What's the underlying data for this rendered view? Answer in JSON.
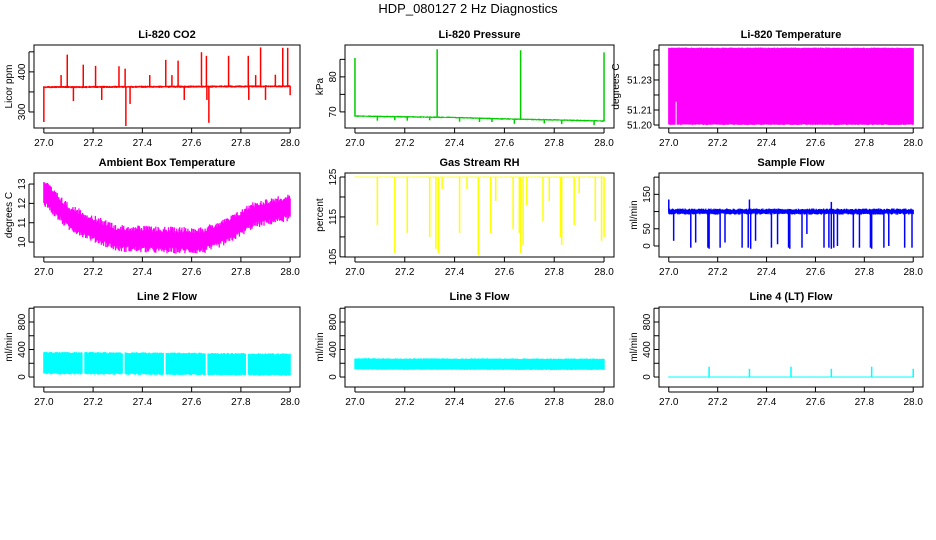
{
  "title": "HDP_080127  2 Hz Diagnostics",
  "chart_data": [
    {
      "type": "line",
      "title": "Li-820 CO2",
      "ylabel": "Licor ppm",
      "color": "#ff0000",
      "xlim": [
        26.96,
        28.04
      ],
      "xticks": [
        27.0,
        27.2,
        27.4,
        27.6,
        27.8,
        28.0
      ],
      "xticklabels": [
        "27.0",
        "27.2",
        "27.4",
        "27.6",
        "27.8",
        "28.0"
      ],
      "ylim": [
        260,
        467
      ],
      "yticks": [
        300,
        350,
        400,
        450
      ],
      "yticklabels": [
        "300",
        "",
        "400",
        ""
      ],
      "baseline": [
        [
          27.0,
          362
        ],
        [
          28.0,
          364
        ]
      ],
      "band_half": 3,
      "jitter": 0.6,
      "spikes": [
        [
          27.0,
          275
        ],
        [
          27.07,
          392
        ],
        [
          27.095,
          443
        ],
        [
          27.12,
          327
        ],
        [
          27.16,
          418
        ],
        [
          27.21,
          415
        ],
        [
          27.235,
          330
        ],
        [
          27.305,
          414
        ],
        [
          27.33,
          408
        ],
        [
          27.333,
          265
        ],
        [
          27.35,
          320
        ],
        [
          27.43,
          392
        ],
        [
          27.495,
          430
        ],
        [
          27.52,
          392
        ],
        [
          27.545,
          428
        ],
        [
          27.57,
          330
        ],
        [
          27.64,
          449
        ],
        [
          27.66,
          440
        ],
        [
          27.662,
          330
        ],
        [
          27.67,
          273
        ],
        [
          27.75,
          440
        ],
        [
          27.83,
          440
        ],
        [
          27.832,
          330
        ],
        [
          27.86,
          392
        ],
        [
          27.88,
          461
        ],
        [
          27.9,
          330
        ],
        [
          27.94,
          393
        ],
        [
          27.97,
          460
        ],
        [
          27.99,
          460
        ],
        [
          28.0,
          342
        ]
      ]
    },
    {
      "type": "line",
      "title": "Li-820 Pressure",
      "ylabel": "kPa",
      "color": "#00cc00",
      "xlim": [
        26.96,
        28.04
      ],
      "xticks": [
        27.0,
        27.2,
        27.4,
        27.6,
        27.8,
        28.0
      ],
      "xticklabels": [
        "27.0",
        "27.2",
        "27.4",
        "27.6",
        "27.8",
        "28.0"
      ],
      "ylim": [
        65.4,
        89.1
      ],
      "yticks": [
        70,
        75,
        80,
        85
      ],
      "yticklabels": [
        "70",
        "",
        "80",
        ""
      ],
      "baseline": [
        [
          27.0,
          68.8
        ],
        [
          27.4,
          68.4
        ],
        [
          27.6,
          68.0
        ],
        [
          28.0,
          67.4
        ]
      ],
      "band_half": 0.25,
      "jitter": 0.6,
      "spikes": [
        [
          27.0,
          85.4
        ],
        [
          27.33,
          87.9
        ],
        [
          27.665,
          87.6
        ],
        [
          28.0,
          87.0
        ],
        [
          27.09,
          67.5
        ],
        [
          27.16,
          67.6
        ],
        [
          27.21,
          67.5
        ],
        [
          27.3,
          67.6
        ],
        [
          27.42,
          67.2
        ],
        [
          27.5,
          67.1
        ],
        [
          27.55,
          67.1
        ],
        [
          27.64,
          66.6
        ],
        [
          27.76,
          66.7
        ],
        [
          27.83,
          66.5
        ],
        [
          27.96,
          66.2
        ]
      ]
    },
    {
      "type": "area",
      "title": "Li-820 Temperature",
      "ylabel": "degrees C",
      "color": "#ff00ff",
      "xlim": [
        26.96,
        28.04
      ],
      "xticks": [
        27.0,
        27.2,
        27.4,
        27.6,
        27.8,
        28.0
      ],
      "xticklabels": [
        "27.0",
        "27.2",
        "27.4",
        "27.6",
        "27.8",
        "28.0"
      ],
      "ylim": [
        51.198,
        51.2533
      ],
      "yticks": [
        51.2,
        51.21,
        51.22,
        51.23,
        51.24,
        51.25
      ],
      "yticklabels": [
        "51.20",
        "51.21",
        "",
        "51.23",
        "",
        ""
      ],
      "baseline": [
        [
          27.0,
          51.2258
        ],
        [
          28.0,
          51.2258
        ]
      ],
      "band_half": 0.0258,
      "jitter": 0.02,
      "notch": [
        27.03,
        51.2,
        51.2155
      ],
      "spikes": []
    },
    {
      "type": "line",
      "title": "Ambient Box Temperature",
      "ylabel": "degrees C",
      "color": "#ff00ff",
      "xlim": [
        26.96,
        28.04
      ],
      "xticks": [
        27.0,
        27.2,
        27.4,
        27.6,
        27.8,
        28.0
      ],
      "xticklabels": [
        "27.0",
        "27.2",
        "27.4",
        "27.6",
        "27.8",
        "28.0"
      ],
      "ylim": [
        9.23,
        13.57
      ],
      "yticks": [
        10,
        11,
        12,
        13
      ],
      "yticklabels": [
        "10",
        "11",
        "12",
        "13"
      ],
      "baseline": [
        [
          27.0,
          12.6
        ],
        [
          27.05,
          11.9
        ],
        [
          27.1,
          11.3
        ],
        [
          27.2,
          10.7
        ],
        [
          27.3,
          10.2
        ],
        [
          27.5,
          10.1
        ],
        [
          27.65,
          10.1
        ],
        [
          27.75,
          10.6
        ],
        [
          27.85,
          11.4
        ],
        [
          28.0,
          11.8
        ]
      ],
      "band_half": 0.7,
      "jitter": 0.45,
      "spikes": []
    },
    {
      "type": "line",
      "title": "Gas Stream RH",
      "ylabel": "percent",
      "color": "#ffff00",
      "xlim": [
        26.96,
        28.04
      ],
      "xticks": [
        27.0,
        27.2,
        27.4,
        27.6,
        27.8,
        28.0
      ],
      "xticklabels": [
        "27.0",
        "27.2",
        "27.4",
        "27.6",
        "27.8",
        "28.0"
      ],
      "ylim": [
        104.97,
        126
      ],
      "yticks": [
        105,
        110,
        115,
        120,
        125
      ],
      "yticklabels": [
        "105",
        "",
        "115",
        "",
        "125"
      ],
      "baseline": [
        [
          27.0,
          125
        ],
        [
          28.0,
          125
        ]
      ],
      "band_half": 0.1,
      "jitter": 0.5,
      "spikes": [
        [
          27.09,
          113
        ],
        [
          27.16,
          106
        ],
        [
          27.21,
          111
        ],
        [
          27.3,
          110
        ],
        [
          27.325,
          107
        ],
        [
          27.335,
          106
        ],
        [
          27.35,
          122
        ],
        [
          27.42,
          111
        ],
        [
          27.45,
          122
        ],
        [
          27.495,
          105.5
        ],
        [
          27.545,
          111
        ],
        [
          27.565,
          119
        ],
        [
          27.635,
          112
        ],
        [
          27.66,
          111
        ],
        [
          27.665,
          106
        ],
        [
          27.675,
          108
        ],
        [
          27.69,
          118
        ],
        [
          27.755,
          114
        ],
        [
          27.78,
          119
        ],
        [
          27.825,
          110
        ],
        [
          27.83,
          108
        ],
        [
          27.88,
          113
        ],
        [
          27.9,
          121
        ],
        [
          27.965,
          114
        ],
        [
          27.99,
          109
        ],
        [
          28.0,
          110
        ]
      ]
    },
    {
      "type": "line",
      "title": "Sample Flow",
      "ylabel": "ml/min",
      "color": "#0000ff",
      "xlim": [
        26.96,
        28.04
      ],
      "xticks": [
        27.0,
        27.2,
        27.4,
        27.6,
        27.8,
        28.0
      ],
      "xticklabels": [
        "27.0",
        "27.2",
        "27.4",
        "27.6",
        "27.8",
        "28.0"
      ],
      "ylim": [
        -32,
        212
      ],
      "yticks": [
        0,
        50,
        100,
        150,
        200
      ],
      "yticklabels": [
        "0",
        "50",
        "",
        "150",
        ""
      ],
      "baseline": [
        [
          27.0,
          100
        ],
        [
          28.0,
          100
        ]
      ],
      "band_half": 9,
      "jitter": 0.5,
      "spikes": [
        [
          27.0,
          135
        ],
        [
          27.33,
          135
        ],
        [
          27.665,
          128
        ],
        [
          27.02,
          15
        ],
        [
          27.09,
          -5
        ],
        [
          27.11,
          10
        ],
        [
          27.16,
          -5
        ],
        [
          27.165,
          -8
        ],
        [
          27.21,
          -5
        ],
        [
          27.23,
          10
        ],
        [
          27.3,
          -5
        ],
        [
          27.325,
          -5
        ],
        [
          27.335,
          -8
        ],
        [
          27.355,
          15
        ],
        [
          27.42,
          -5
        ],
        [
          27.445,
          5
        ],
        [
          27.49,
          -5
        ],
        [
          27.495,
          -8
        ],
        [
          27.545,
          -5
        ],
        [
          27.565,
          35
        ],
        [
          27.635,
          -5
        ],
        [
          27.655,
          -5
        ],
        [
          27.665,
          -8
        ],
        [
          27.675,
          -5
        ],
        [
          27.69,
          0
        ],
        [
          27.755,
          -5
        ],
        [
          27.78,
          -5
        ],
        [
          27.825,
          -5
        ],
        [
          27.83,
          -8
        ],
        [
          27.88,
          -5
        ],
        [
          27.9,
          0
        ],
        [
          27.965,
          -5
        ],
        [
          27.995,
          -5
        ]
      ]
    },
    {
      "type": "line",
      "title": "Line 2 Flow",
      "ylabel": "ml/min",
      "color": "#00ffff",
      "xlim": [
        26.96,
        28.04
      ],
      "xticks": [
        27.0,
        27.2,
        27.4,
        27.6,
        27.8,
        28.0
      ],
      "xticklabels": [
        "27.0",
        "27.2",
        "27.4",
        "27.6",
        "27.8",
        "28.0"
      ],
      "ylim": [
        -145,
        1018
      ],
      "yticks": [
        0,
        200,
        400,
        600,
        800,
        1000
      ],
      "yticklabels": [
        "0",
        "",
        "400",
        "",
        "800",
        ""
      ],
      "baseline": [
        [
          27.0,
          205
        ],
        [
          28.0,
          180
        ]
      ],
      "band_half": 165,
      "jitter": 0.12,
      "gaps": [
        [
          27.155,
          27.165
        ],
        [
          27.32,
          27.33
        ],
        [
          27.485,
          27.495
        ],
        [
          27.655,
          27.665
        ],
        [
          27.82,
          27.83
        ]
      ],
      "spikes": []
    },
    {
      "type": "line",
      "title": "Line 3 Flow",
      "ylabel": "ml/min",
      "color": "#00ffff",
      "xlim": [
        26.96,
        28.04
      ],
      "xticks": [
        27.0,
        27.2,
        27.4,
        27.6,
        27.8,
        28.0
      ],
      "xticklabels": [
        "27.0",
        "27.2",
        "27.4",
        "27.6",
        "27.8",
        "28.0"
      ],
      "ylim": [
        -145,
        1018
      ],
      "yticks": [
        0,
        200,
        400,
        600,
        800,
        1000
      ],
      "yticklabels": [
        "0",
        "",
        "400",
        "",
        "800",
        ""
      ],
      "baseline": [
        [
          27.0,
          190
        ],
        [
          28.0,
          185
        ]
      ],
      "band_half": 85,
      "jitter": 0.15,
      "spikes": []
    },
    {
      "type": "line",
      "title": "Line 4 (LT) Flow",
      "ylabel": "ml/min",
      "color": "#00ffff",
      "xlim": [
        26.96,
        28.04
      ],
      "xticks": [
        27.0,
        27.2,
        27.4,
        27.6,
        27.8,
        28.0
      ],
      "xticklabels": [
        "27.0",
        "27.2",
        "27.4",
        "27.6",
        "27.8",
        "28.0"
      ],
      "ylim": [
        -145,
        1018
      ],
      "yticks": [
        0,
        200,
        400,
        600,
        800,
        1000
      ],
      "yticklabels": [
        "0",
        "",
        "400",
        "",
        "800",
        ""
      ],
      "baseline": [
        [
          27.0,
          0
        ],
        [
          28.0,
          0
        ]
      ],
      "band_half": 0,
      "jitter": 0,
      "spikes": [
        [
          27.165,
          150
        ],
        [
          27.33,
          120
        ],
        [
          27.5,
          150
        ],
        [
          27.665,
          120
        ],
        [
          27.83,
          150
        ],
        [
          28.0,
          120
        ]
      ]
    }
  ]
}
